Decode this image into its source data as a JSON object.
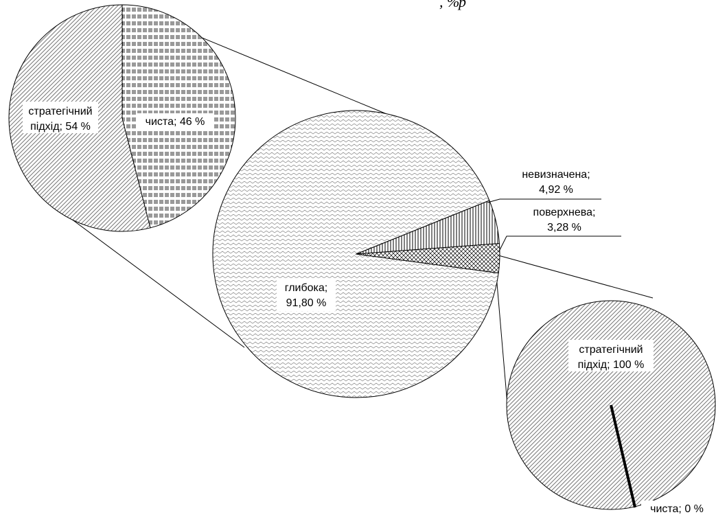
{
  "header": {
    "caption_fragment": ", %",
    "caption_fragment_prefix": "р"
  },
  "chart_data": [
    {
      "type": "pie",
      "slices": [
        {
          "label": "глибока",
          "value": 91.8,
          "text_line1": "глибока;",
          "text_line2": "91,80 %",
          "pattern": "zigzag"
        },
        {
          "label": "невизначена",
          "value": 4.92,
          "text_line1": "невизначена;",
          "text_line2": "4,92 %",
          "pattern": "vertical-lines"
        },
        {
          "label": "поверхнева",
          "value": 3.28,
          "text_line1": "поверхнева;",
          "text_line2": "3,28 %",
          "pattern": "crosshatch"
        }
      ]
    },
    {
      "type": "pie",
      "slices": [
        {
          "label": "стратегічний підхід",
          "value": 54,
          "text_line1": "стратегічний",
          "text_line2": "підхід; 54 %",
          "pattern": "diagonal-lines"
        },
        {
          "label": "чиста",
          "value": 46,
          "text_line1": "чиста; 46 %",
          "pattern": "brick-lines"
        }
      ]
    },
    {
      "type": "pie",
      "slices": [
        {
          "label": "стратегічний підхід",
          "value": 100,
          "text_line1": "стратегічний",
          "text_line2": "підхід; 100 %",
          "pattern": "diagonal-lines"
        },
        {
          "label": "чиста",
          "value": 0,
          "text_line1": "чиста; 0 %",
          "pattern": "solid"
        }
      ]
    }
  ]
}
